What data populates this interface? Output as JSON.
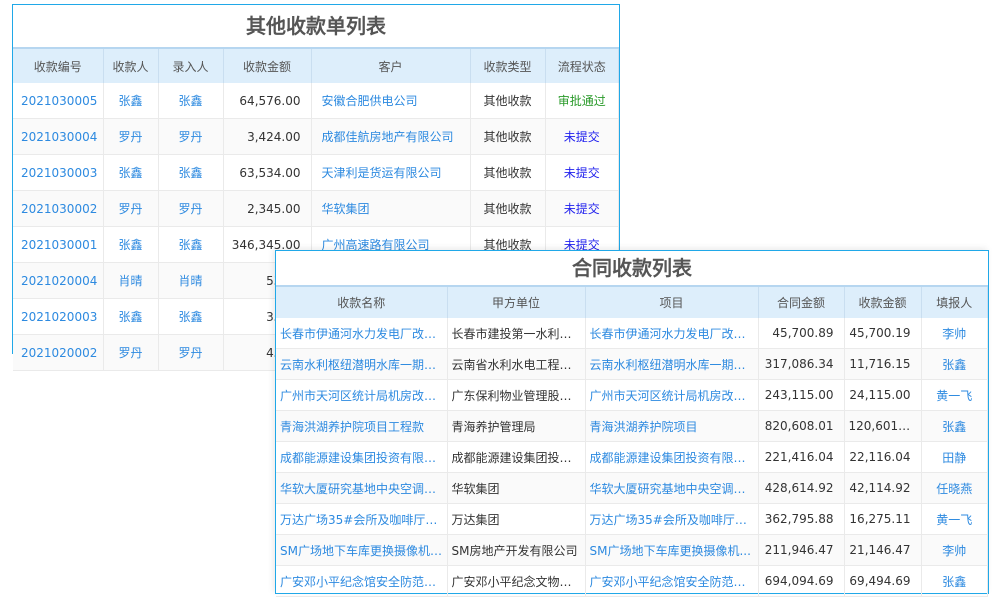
{
  "other": {
    "title": "其他收款单列表",
    "headers": [
      "收款编号",
      "收款人",
      "录入人",
      "收款金额",
      "客户",
      "收款类型",
      "流程状态"
    ],
    "rows": [
      [
        "2021030005",
        "张鑫",
        "张鑫",
        "64,576.00",
        "安徽合肥供电公司",
        "其他收款",
        "审批通过"
      ],
      [
        "2021030004",
        "罗丹",
        "罗丹",
        "3,424.00",
        "成都佳航房地产有限公司",
        "其他收款",
        "未提交"
      ],
      [
        "2021030003",
        "张鑫",
        "张鑫",
        "63,534.00",
        "天津利是货运有限公司",
        "其他收款",
        "未提交"
      ],
      [
        "2021030002",
        "罗丹",
        "罗丹",
        "2,345.00",
        "华软集团",
        "其他收款",
        "未提交"
      ],
      [
        "2021030001",
        "张鑫",
        "张鑫",
        "346,345.00",
        "广州高速路有限公司",
        "其他收款",
        "未提交"
      ],
      [
        "2021020004",
        "肖晴",
        "肖晴",
        "53,45",
        "",
        "",
        ""
      ],
      [
        "2021020003",
        "张鑫",
        "张鑫",
        "35,53",
        "",
        "",
        ""
      ],
      [
        "2021020002",
        "罗丹",
        "罗丹",
        "45,35",
        "",
        "",
        ""
      ]
    ]
  },
  "contract": {
    "title": "合同收款列表",
    "headers": [
      "收款名称",
      "甲方单位",
      "项目",
      "合同金额",
      "收款金额",
      "填报人"
    ],
    "rows": [
      [
        "长春市伊通河水力发电厂改建...",
        "长春市建投第一水利水...",
        "长春市伊通河水力发电厂改建...",
        "45,700.89",
        "45,700.19",
        "李帅"
      ],
      [
        "云南水利枢纽潜明水库一期工...",
        "云南省水利水电工程有...",
        "云南水利枢纽潜明水库一期工...",
        "317,086.34",
        "11,716.15",
        "张鑫"
      ],
      [
        "广州市天河区统计局机房改造...",
        "广东保利物业管理股份...",
        "广州市天河区统计局机房改造...",
        "243,115.00",
        "24,115.00",
        "黄一飞"
      ],
      [
        "青海洪湖养护院项目工程款",
        "青海养护管理局",
        "青海洪湖养护院项目",
        "820,608.01",
        "120,601.02",
        "张鑫"
      ],
      [
        "成都能源建设集团投资有限公...",
        "成都能源建设集团投资...",
        "成都能源建设集团投资有限公...",
        "221,416.04",
        "22,116.04",
        "田静"
      ],
      [
        "华软大厦研究基地中央空调系...",
        "华软集团",
        "华软大厦研究基地中央空调系...",
        "428,614.92",
        "42,114.92",
        "任晓燕"
      ],
      [
        "万达广场35#会所及咖啡厅空调...",
        "万达集团",
        "万达广场35#会所及咖啡厅空...",
        "362,795.88",
        "16,275.11",
        "黄一飞"
      ],
      [
        "SM广场地下车库更换摄像机及...",
        "SM房地产开发有限公司",
        "SM广场地下车库更换摄像机...",
        "211,946.47",
        "21,146.47",
        "李帅"
      ],
      [
        "广安邓小平纪念馆安全防范系...",
        "广安邓小平纪念文物管...",
        "广安邓小平纪念馆安全防范系...",
        "694,094.69",
        "69,494.69",
        "张鑫"
      ]
    ]
  },
  "colors": {
    "link": "#2d8ae0",
    "approved": "#2a9a2a",
    "pending": "#2222ee",
    "border": "#20a8e8"
  }
}
